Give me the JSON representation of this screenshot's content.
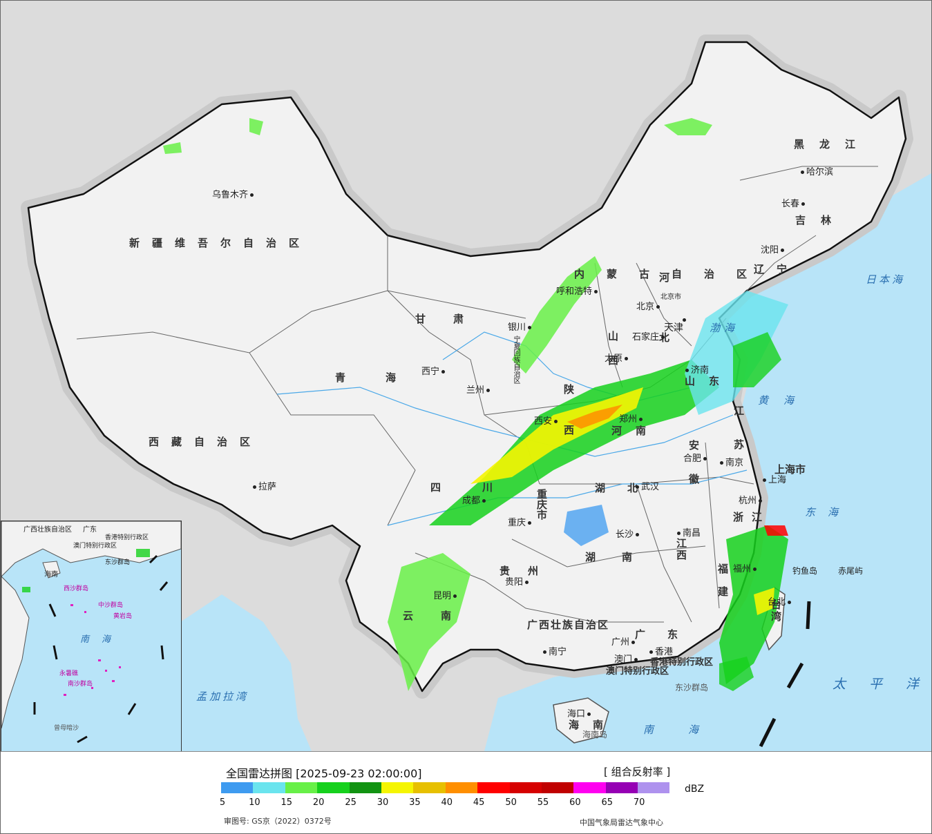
{
  "header": {
    "title": "全国雷达拼图 [2025-09-23 02:00:00]",
    "product": "[ 组合反射率 ]"
  },
  "legend": {
    "unit": "dBZ",
    "ticks": [
      "5",
      "10",
      "15",
      "20",
      "25",
      "30",
      "35",
      "40",
      "45",
      "50",
      "55",
      "60",
      "65",
      "70"
    ],
    "colors": [
      "#3e9bf0",
      "#6ae4ee",
      "#68f048",
      "#16d11d",
      "#129312",
      "#f5f502",
      "#e7c000",
      "#ff8f00",
      "#ff0000",
      "#d60000",
      "#c00000",
      "#ff00f0",
      "#9600b4",
      "#ae92ee"
    ]
  },
  "footer": {
    "review_no": "审图号: GS京（2022）0372号",
    "agency": "中国气象局雷达气象中心"
  },
  "map": {
    "provinces": [
      {
        "name": "新疆维吾尔自治区"
      },
      {
        "name": "西藏自治区"
      },
      {
        "name": "青海"
      },
      {
        "name": "甘肃"
      },
      {
        "name": "四川"
      },
      {
        "name": "云南"
      },
      {
        "name": "贵州"
      },
      {
        "name": "广西壮族自治区"
      },
      {
        "name": "广东"
      },
      {
        "name": "湖南"
      },
      {
        "name": "湖北"
      },
      {
        "name": "江西"
      },
      {
        "name": "福建"
      },
      {
        "name": "浙江"
      },
      {
        "name": "江苏"
      },
      {
        "name": "安徽"
      },
      {
        "name": "河南"
      },
      {
        "name": "山东"
      },
      {
        "name": "山西"
      },
      {
        "name": "河北"
      },
      {
        "name": "陕西"
      },
      {
        "name": "辽宁"
      },
      {
        "name": "吉林"
      },
      {
        "name": "黑龙江"
      },
      {
        "name": "台湾"
      },
      {
        "name": "海南"
      },
      {
        "name": "上海市"
      },
      {
        "name": "天津"
      },
      {
        "name": "北京市"
      },
      {
        "name": "重庆市"
      },
      {
        "name": "宁夏回族自治区"
      },
      {
        "name": "内蒙古自治区"
      },
      {
        "name": "香港特别行政区"
      },
      {
        "name": "澳门特别行政区"
      }
    ],
    "cities": [
      "乌鲁木齐",
      "拉萨",
      "西宁",
      "兰州",
      "银川",
      "呼和浩特",
      "北京",
      "天津",
      "石家庄",
      "太原",
      "济南",
      "郑州",
      "西安",
      "合肥",
      "南京",
      "上海",
      "杭州",
      "武汉",
      "长沙",
      "南昌",
      "福州",
      "台北",
      "重庆",
      "成都",
      "贵阳",
      "昆明",
      "南宁",
      "广州",
      "香港",
      "澳门",
      "海口",
      "沈阳",
      "长春",
      "哈尔滨"
    ],
    "seas": [
      "日本海",
      "渤海",
      "黄海",
      "东海",
      "太平洋",
      "南海",
      "孟加拉湾"
    ],
    "islands": [
      "钓鱼岛",
      "赤尾屿",
      "东沙群岛",
      "海南岛"
    ],
    "inset": {
      "labels": [
        "广西壮族自治区",
        "广东",
        "香港特别行政区",
        "澳门特别行政区",
        "东沙群岛",
        "海南",
        "西沙群岛",
        "中沙群岛",
        "黄岩岛",
        "南沙群岛",
        "永暑礁",
        "曾母暗沙",
        "南海"
      ]
    }
  }
}
